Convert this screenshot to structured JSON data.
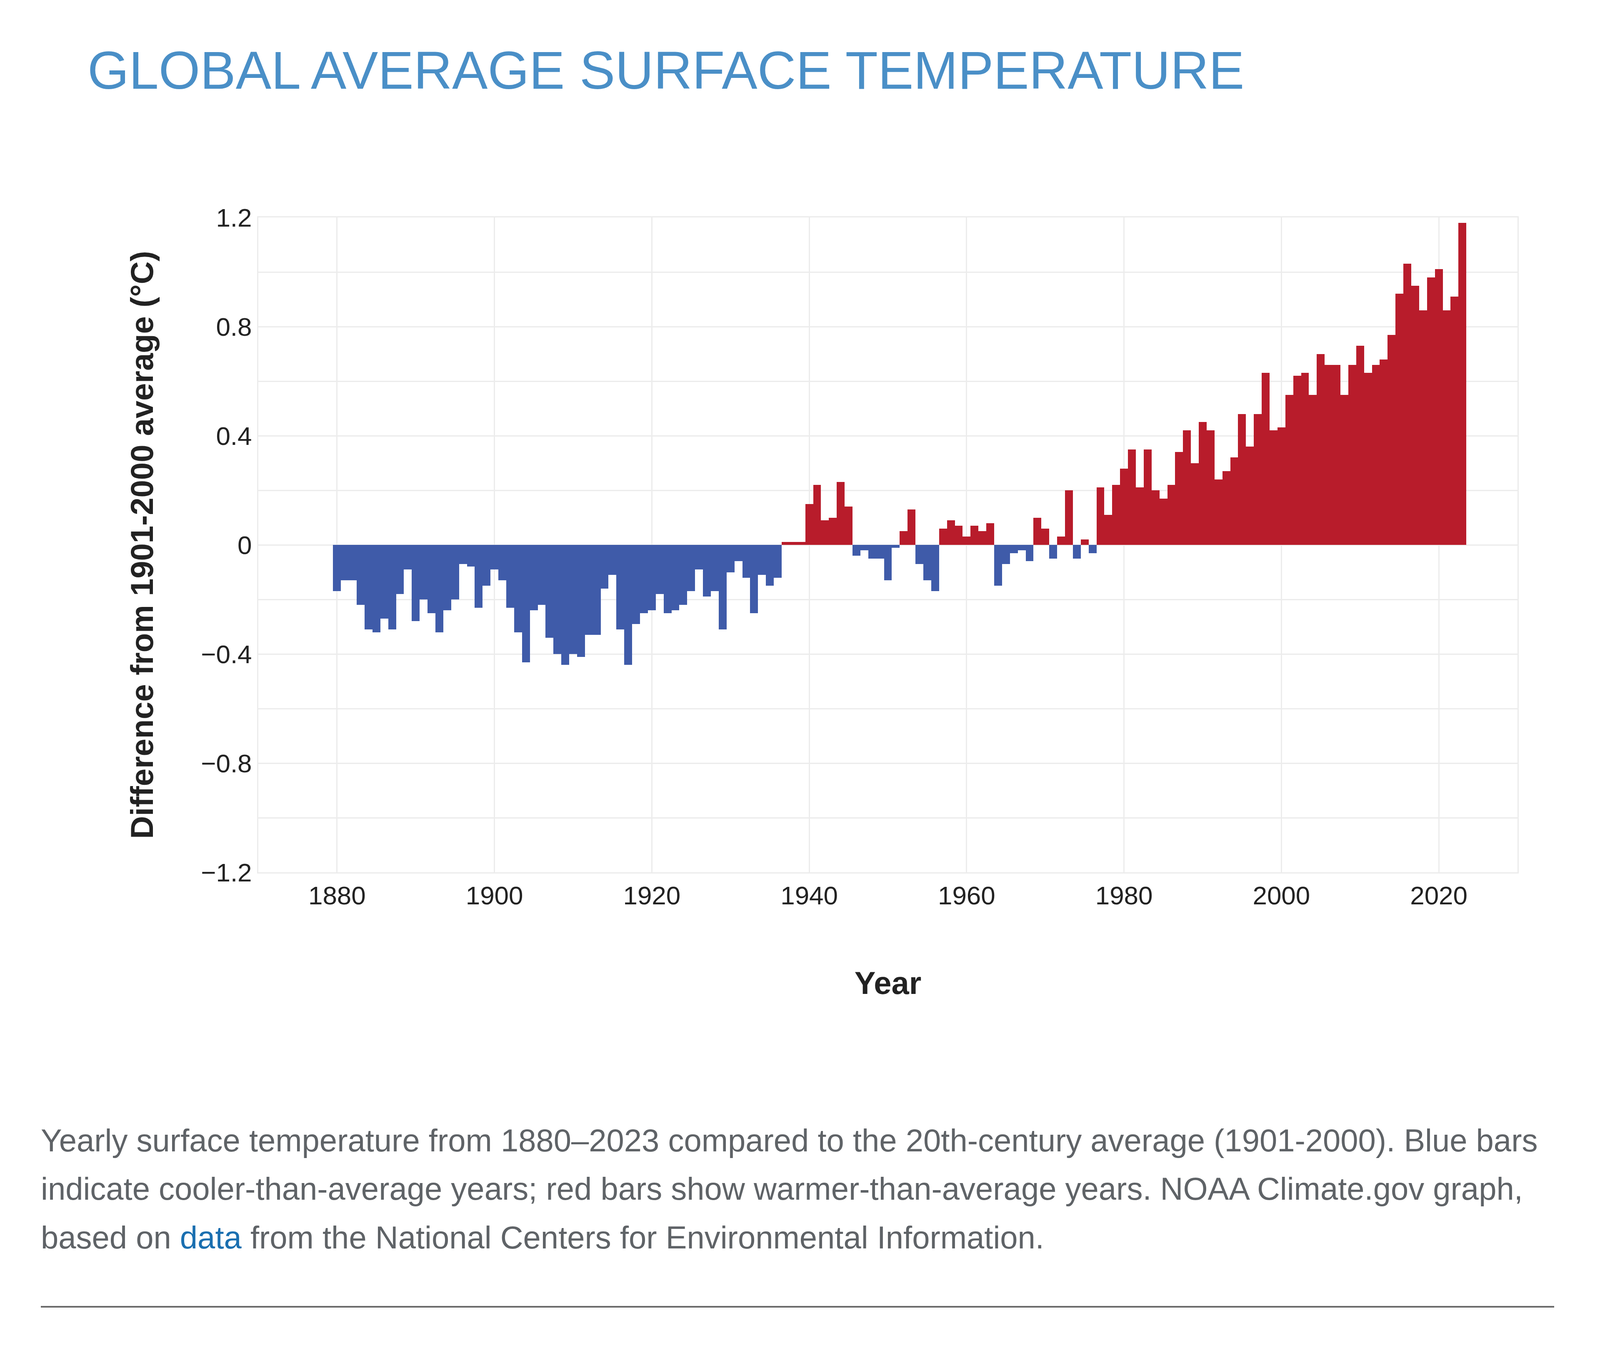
{
  "chart_data": {
    "type": "bar",
    "title": "GLOBAL AVERAGE SURFACE TEMPERATURE",
    "x_label": "Year",
    "y_label": "Difference from 1901-2000 average (°C)",
    "caption": [
      "Yearly surface temperature from 1880–2023 compared to the 20th-century average (1901-2000). Blue bars indicate cooler-than-average years; red bars show warmer-than-average years. NOAA Climate.gov graph, based on ",
      "data",
      " from the National Centers for Environmental Information."
    ],
    "x": [
      1880,
      1881,
      1882,
      1883,
      1884,
      1885,
      1886,
      1887,
      1888,
      1889,
      1890,
      1891,
      1892,
      1893,
      1894,
      1895,
      1896,
      1897,
      1898,
      1899,
      1900,
      1901,
      1902,
      1903,
      1904,
      1905,
      1906,
      1907,
      1908,
      1909,
      1910,
      1911,
      1912,
      1913,
      1914,
      1915,
      1916,
      1917,
      1918,
      1919,
      1920,
      1921,
      1922,
      1923,
      1924,
      1925,
      1926,
      1927,
      1928,
      1929,
      1930,
      1931,
      1932,
      1933,
      1934,
      1935,
      1936,
      1937,
      1938,
      1939,
      1940,
      1941,
      1942,
      1943,
      1944,
      1945,
      1946,
      1947,
      1948,
      1949,
      1950,
      1951,
      1952,
      1953,
      1954,
      1955,
      1956,
      1957,
      1958,
      1959,
      1960,
      1961,
      1962,
      1963,
      1964,
      1965,
      1966,
      1967,
      1968,
      1969,
      1970,
      1971,
      1972,
      1973,
      1974,
      1975,
      1976,
      1977,
      1978,
      1979,
      1980,
      1981,
      1982,
      1983,
      1984,
      1985,
      1986,
      1987,
      1988,
      1989,
      1990,
      1991,
      1992,
      1993,
      1994,
      1995,
      1996,
      1997,
      1998,
      1999,
      2000,
      2001,
      2002,
      2003,
      2004,
      2005,
      2006,
      2007,
      2008,
      2009,
      2010,
      2011,
      2012,
      2013,
      2014,
      2015,
      2016,
      2017,
      2018,
      2019,
      2020,
      2021,
      2022,
      2023
    ],
    "values": [
      -0.17,
      -0.13,
      -0.13,
      -0.22,
      -0.31,
      -0.32,
      -0.27,
      -0.31,
      -0.18,
      -0.09,
      -0.28,
      -0.2,
      -0.25,
      -0.32,
      -0.24,
      -0.2,
      -0.07,
      -0.08,
      -0.23,
      -0.15,
      -0.09,
      -0.13,
      -0.23,
      -0.32,
      -0.43,
      -0.24,
      -0.22,
      -0.34,
      -0.4,
      -0.44,
      -0.4,
      -0.41,
      -0.33,
      -0.33,
      -0.16,
      -0.11,
      -0.31,
      -0.44,
      -0.29,
      -0.25,
      -0.24,
      -0.18,
      -0.25,
      -0.24,
      -0.22,
      -0.17,
      -0.09,
      -0.19,
      -0.17,
      -0.31,
      -0.1,
      -0.06,
      -0.12,
      -0.25,
      -0.11,
      -0.15,
      -0.12,
      0.01,
      0.01,
      0.01,
      0.15,
      0.22,
      0.09,
      0.1,
      0.23,
      0.14,
      -0.04,
      -0.02,
      -0.05,
      -0.05,
      -0.13,
      -0.01,
      0.05,
      0.13,
      -0.07,
      -0.13,
      -0.17,
      0.06,
      0.09,
      0.07,
      0.03,
      0.07,
      0.05,
      0.08,
      -0.15,
      -0.07,
      -0.03,
      -0.02,
      -0.06,
      0.1,
      0.06,
      -0.05,
      0.03,
      0.2,
      -0.05,
      0.02,
      -0.03,
      0.21,
      0.11,
      0.22,
      0.28,
      0.35,
      0.21,
      0.35,
      0.2,
      0.17,
      0.22,
      0.34,
      0.42,
      0.3,
      0.45,
      0.42,
      0.24,
      0.27,
      0.32,
      0.48,
      0.36,
      0.48,
      0.63,
      0.42,
      0.43,
      0.55,
      0.62,
      0.63,
      0.55,
      0.7,
      0.66,
      0.66,
      0.55,
      0.66,
      0.73,
      0.63,
      0.66,
      0.68,
      0.77,
      0.92,
      1.03,
      0.95,
      0.86,
      0.98,
      1.01,
      0.86,
      0.91,
      1.18
    ],
    "colors": [
      "#3f5ba9",
      "#3f5ba9",
      "#3f5ba9",
      "#3f5ba9",
      "#3f5ba9",
      "#3f5ba9",
      "#3f5ba9",
      "#3f5ba9",
      "#3f5ba9",
      "#3f5ba9",
      "#3f5ba9",
      "#3f5ba9",
      "#3f5ba9",
      "#3f5ba9",
      "#3f5ba9",
      "#3f5ba9",
      "#3f5ba9",
      "#3f5ba9",
      "#3f5ba9",
      "#3f5ba9",
      "#3f5ba9",
      "#3f5ba9",
      "#3f5ba9",
      "#3f5ba9",
      "#3f5ba9",
      "#3f5ba9",
      "#3f5ba9",
      "#3f5ba9",
      "#3f5ba9",
      "#3f5ba9",
      "#3f5ba9",
      "#3f5ba9",
      "#3f5ba9",
      "#3f5ba9",
      "#3f5ba9",
      "#3f5ba9",
      "#3f5ba9",
      "#3f5ba9",
      "#3f5ba9",
      "#3f5ba9",
      "#3f5ba9",
      "#3f5ba9",
      "#3f5ba9",
      "#3f5ba9",
      "#3f5ba9",
      "#3f5ba9",
      "#3f5ba9",
      "#3f5ba9",
      "#3f5ba9",
      "#3f5ba9",
      "#3f5ba9",
      "#3f5ba9",
      "#3f5ba9",
      "#3f5ba9",
      "#3f5ba9",
      "#3f5ba9",
      "#3f5ba9",
      "#b81c2b",
      "#b81c2b",
      "#b81c2b",
      "#b81c2b",
      "#b81c2b",
      "#b81c2b",
      "#b81c2b",
      "#b81c2b",
      "#b81c2b",
      "#3f5ba9",
      "#3f5ba9",
      "#3f5ba9",
      "#3f5ba9",
      "#3f5ba9",
      "#3f5ba9",
      "#b81c2b",
      "#b81c2b",
      "#3f5ba9",
      "#3f5ba9",
      "#3f5ba9",
      "#b81c2b",
      "#b81c2b",
      "#b81c2b",
      "#b81c2b",
      "#b81c2b",
      "#b81c2b",
      "#b81c2b",
      "#3f5ba9",
      "#3f5ba9",
      "#3f5ba9",
      "#3f5ba9",
      "#3f5ba9",
      "#b81c2b",
      "#b81c2b",
      "#3f5ba9",
      "#b81c2b",
      "#b81c2b",
      "#3f5ba9",
      "#b81c2b",
      "#3f5ba9",
      "#b81c2b",
      "#b81c2b",
      "#b81c2b",
      "#b81c2b",
      "#b81c2b",
      "#b81c2b",
      "#b81c2b",
      "#b81c2b",
      "#b81c2b",
      "#b81c2b",
      "#b81c2b",
      "#b81c2b",
      "#b81c2b",
      "#b81c2b",
      "#b81c2b",
      "#b81c2b",
      "#b81c2b",
      "#b81c2b",
      "#b81c2b",
      "#b81c2b",
      "#b81c2b",
      "#b81c2b",
      "#b81c2b",
      "#b81c2b",
      "#b81c2b",
      "#b81c2b",
      "#b81c2b",
      "#b81c2b",
      "#b81c2b",
      "#b81c2b",
      "#b81c2b",
      "#b81c2b",
      "#b81c2b",
      "#b81c2b",
      "#b81c2b",
      "#b81c2b",
      "#b81c2b",
      "#b81c2b",
      "#b81c2b",
      "#b81c2b",
      "#b81c2b",
      "#b81c2b",
      "#b81c2b",
      "#b81c2b",
      "#b81c2b",
      "#b81c2b",
      "#b81c2b"
    ],
    "xlim": [
      1870,
      2030
    ],
    "xticks": [
      1880,
      1900,
      1920,
      1940,
      1960,
      1980,
      2000,
      2020
    ],
    "ylim": [
      -1.2,
      1.2
    ],
    "yticks": [
      {
        "value": -1.2,
        "label": "−1.2"
      },
      {
        "value": -0.8,
        "label": "−0.8"
      },
      {
        "value": -0.4,
        "label": "−0.4"
      },
      0,
      0.4,
      0.8,
      1.2
    ],
    "grid": true
  }
}
